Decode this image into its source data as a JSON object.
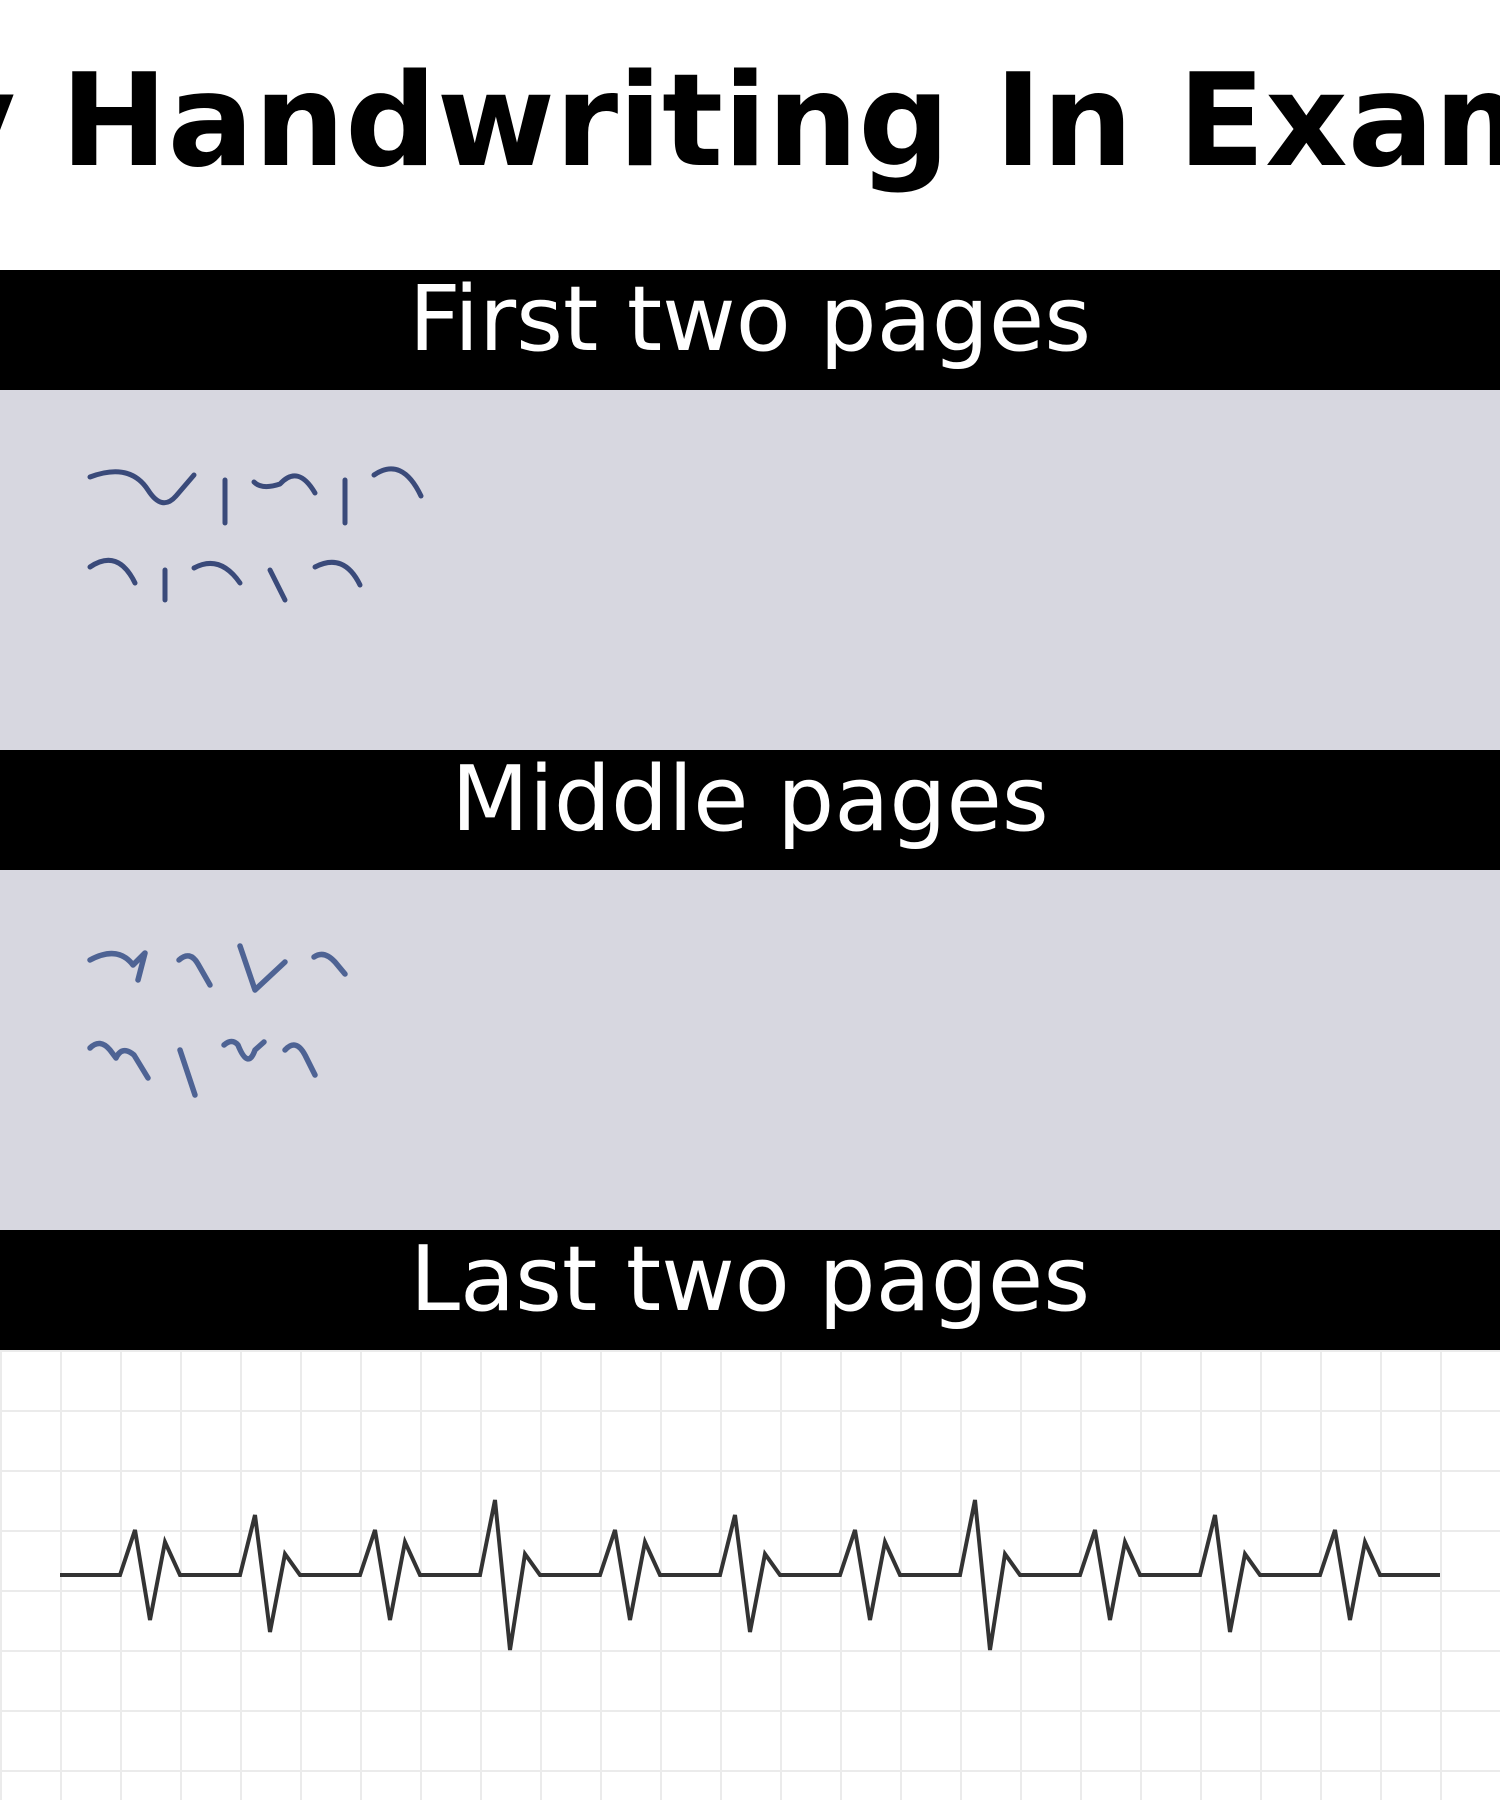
{
  "title": "y Handwriting In Exam",
  "sections": [
    {
      "label": "First two pages"
    },
    {
      "label": "Middle pages"
    },
    {
      "label": "Last two pages"
    }
  ],
  "colors": {
    "header_bg": "#000000",
    "header_text": "#ffffff",
    "panel_bg": "#d7d7e0",
    "ink_first": "#3a4a7a",
    "ink_middle": "#4e6394",
    "ecg_line": "#333333",
    "grid_line": "#ebebeb"
  },
  "icons": [
    "neat-scribble",
    "messy-scribble",
    "heartbeat-line"
  ]
}
